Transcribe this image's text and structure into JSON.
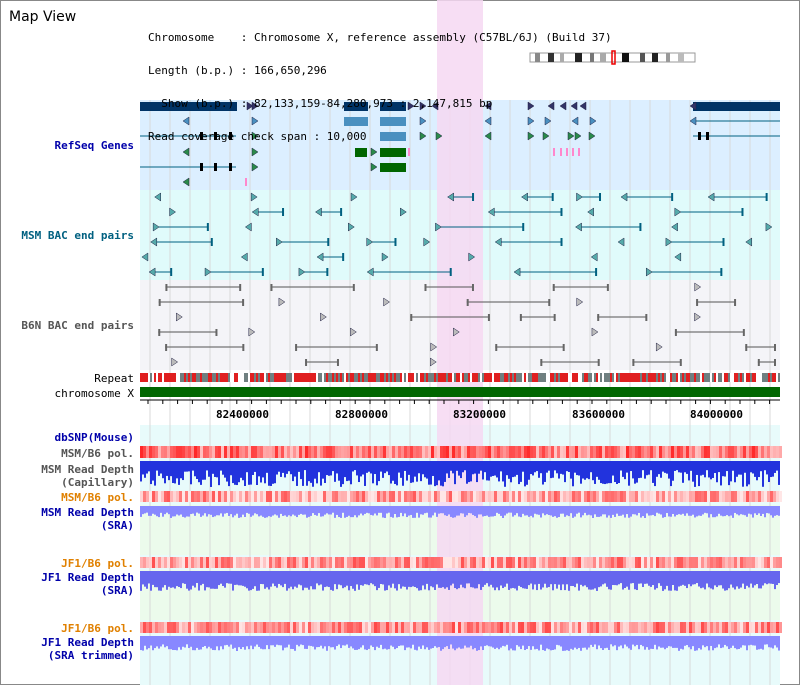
{
  "title": "Map View",
  "info": {
    "line1": "Chromosome    : Chromosome X, reference assembly (C57BL/6J) (Build 37)",
    "line2": "Length (b.p.) : 166,650,296",
    "line3": "  Show (b.p.) : 82,133,159-84,280,973 : 2,147,815 bp",
    "line4": "Read coverage check span : 10,000"
  },
  "tracks": {
    "refseq": "RefSeq Genes",
    "msm_bac": "MSM BAC end pairs",
    "b6n_bac": "B6N BAC end pairs",
    "repeat": "Repeat",
    "chrom": "chromosome X",
    "dbsnp": "dbSNP(Mouse)",
    "msm_pol": "MSM/B6 pol.",
    "msm_depth_cap_1": "MSM Read Depth",
    "msm_depth_cap_2": "(Capillary)",
    "msm_pol_sra": "MSM/B6 pol.",
    "msm_depth_sra_1": "MSM Read Depth",
    "msm_depth_sra_2": "(SRA)",
    "jf1_pol": "JF1/B6 pol.",
    "jf1_depth_1": "JF1 Read Depth",
    "jf1_depth_2": "(SRA)",
    "jf1_pol2": "JF1/B6 pol.",
    "jf1_trim_1": "JF1 Read Depth",
    "jf1_trim_2": "(SRA trimmed)"
  },
  "axis": {
    "ticks": [
      "82400000",
      "82800000",
      "83200000",
      "83600000",
      "84000000"
    ]
  },
  "colors": {
    "refseq_bg": "#dcefff",
    "msm_bg": "#e0fbfb",
    "b6n_bg": "#f4f4f8",
    "highlight": "#f6d8f2",
    "gene_dark": "#003366",
    "gene_mid": "#4a90c0",
    "gene_green": "#006600",
    "pink": "#ff88cc",
    "chrom": "#006600"
  }
}
